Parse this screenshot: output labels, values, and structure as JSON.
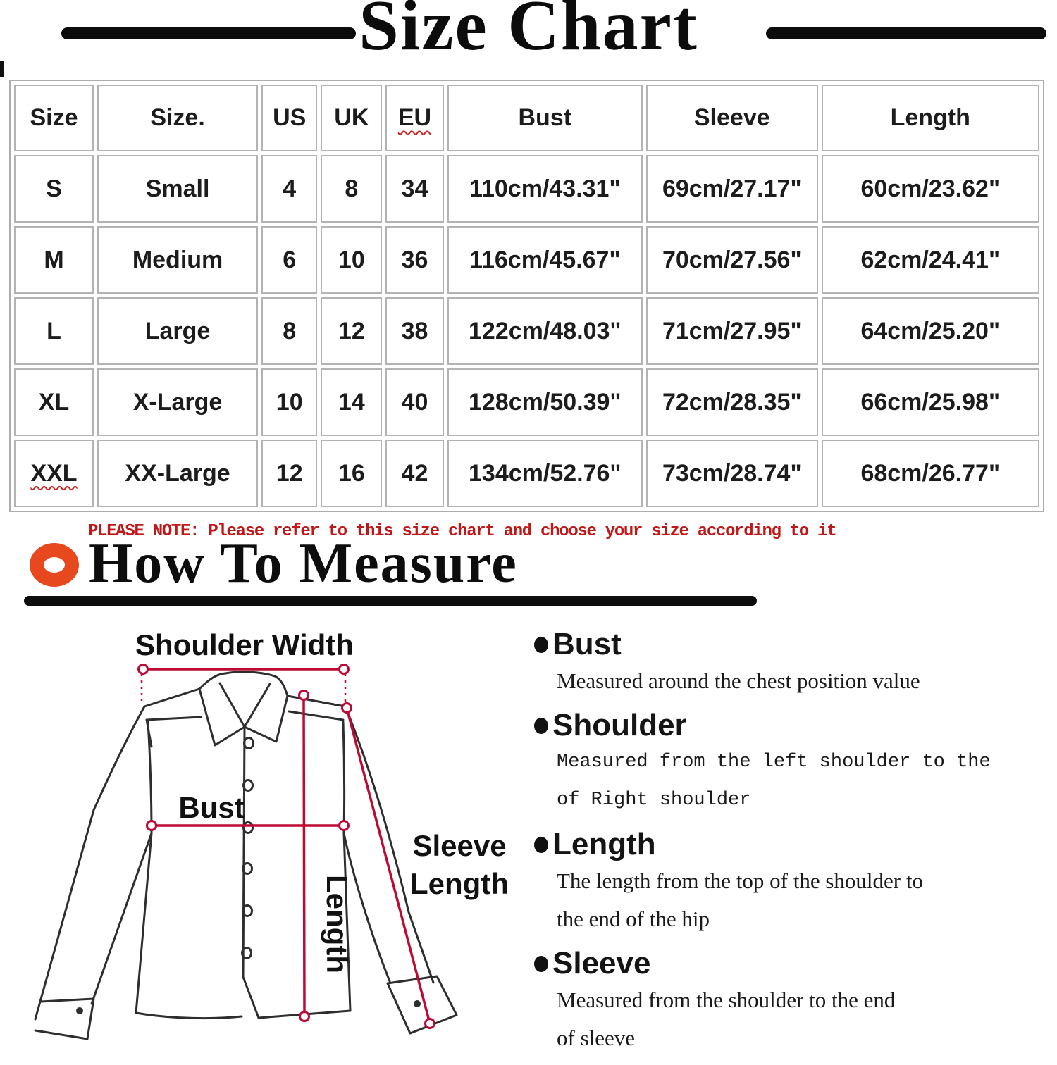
{
  "title": "Size Chart",
  "note": "PLEASE NOTE: Please refer to this size chart and choose your size according to it",
  "how_to_measure": {
    "title": "How To Measure"
  },
  "table": {
    "headers": [
      "Size",
      "Size.",
      "US",
      "UK",
      "EU",
      "Bust",
      "Sleeve",
      "Length"
    ],
    "rows": [
      [
        "S",
        "Small",
        "4",
        "8",
        "34",
        "110cm/43.31\"",
        "69cm/27.17\"",
        "60cm/23.62\""
      ],
      [
        "M",
        "Medium",
        "6",
        "10",
        "36",
        "116cm/45.67\"",
        "70cm/27.56\"",
        "62cm/24.41\""
      ],
      [
        "L",
        "Large",
        "8",
        "12",
        "38",
        "122cm/48.03\"",
        "71cm/27.95\"",
        "64cm/25.20\""
      ],
      [
        "XL",
        "X-Large",
        "10",
        "14",
        "40",
        "128cm/50.39\"",
        "72cm/28.35\"",
        "66cm/25.98\""
      ],
      [
        "XXL",
        "XX-Large",
        "12",
        "16",
        "42",
        "134cm/52.76\"",
        "73cm/28.74\"",
        "68cm/26.77\""
      ]
    ],
    "decorations": {
      "squiggle_headers": [
        4
      ],
      "squiggle_cells": [
        [
          4,
          0
        ]
      ]
    }
  },
  "diagram_labels": {
    "shoulder_width": "Shoulder Width",
    "bust": "Bust",
    "length": "Length",
    "sleeve_line1": "Sleeve",
    "sleeve_line2": "Length"
  },
  "measure_items": [
    {
      "label": "Bust",
      "desc_style": "serif",
      "desc_lines": [
        "Measured around the chest position value"
      ]
    },
    {
      "label": "Shoulder",
      "desc_style": "mono",
      "desc_lines": [
        "Measured from the left shoulder to the",
        "of Right shoulder"
      ]
    },
    {
      "label": "Length",
      "desc_style": "serif",
      "desc_lines": [
        "The length from the top of the shoulder to",
        "the end of the hip"
      ]
    },
    {
      "label": "Sleeve",
      "desc_style": "serif",
      "desc_lines": [
        "Measured from the shoulder to the end",
        "of sleeve"
      ]
    }
  ],
  "colors": {
    "accent_red": "#be0a32",
    "note_red": "#c01818",
    "donut_orange": "#e8481e",
    "table_border": "#b3b3b3",
    "ink": "#111111"
  }
}
